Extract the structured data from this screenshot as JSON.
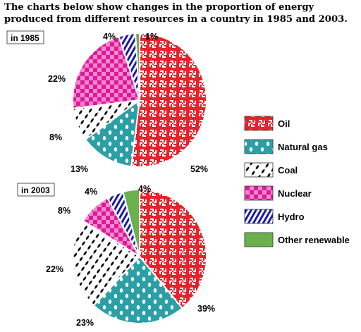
{
  "title": "The charts below show changes in the proportion of energy produced from different resources in a country in 1985 and 2003.",
  "colors": {
    "oil": "#e8212b",
    "natural_gas": "#2aa0a6",
    "coal": "#000000",
    "nuclear": "#e0179a",
    "hydro": "#1a1aa8",
    "other_renewable": "#6ab04c"
  },
  "legend": [
    {
      "key": "oil",
      "label": "Oil",
      "pattern": "oil-pattern"
    },
    {
      "key": "natural_gas",
      "label": "Natural gas",
      "pattern": "gas-pattern"
    },
    {
      "key": "coal",
      "label": "Coal",
      "pattern": "coal-pattern"
    },
    {
      "key": "nuclear",
      "label": "Nuclear",
      "pattern": "nuclear-pattern"
    },
    {
      "key": "hydro",
      "label": "Hydro",
      "pattern": "hydro-pattern"
    },
    {
      "key": "other_renewable",
      "label": "Other renewable",
      "pattern": "renew-pattern"
    }
  ],
  "chart_data": [
    {
      "type": "pie",
      "title": "in 1985",
      "categories": [
        "Oil",
        "Natural gas",
        "Coal",
        "Nuclear",
        "Hydro",
        "Other renewable"
      ],
      "values": [
        52,
        13,
        8,
        22,
        4,
        1
      ],
      "labels": [
        "52%",
        "13%",
        "8%",
        "22%",
        "4%",
        "1%"
      ]
    },
    {
      "type": "pie",
      "title": "in 2003",
      "categories": [
        "Oil",
        "Natural gas",
        "Coal",
        "Nuclear",
        "Hydro",
        "Other renewable"
      ],
      "values": [
        39,
        23,
        22,
        8,
        4,
        4
      ],
      "labels": [
        "39%",
        "23%",
        "22%",
        "8%",
        "4%",
        "4%"
      ]
    }
  ]
}
